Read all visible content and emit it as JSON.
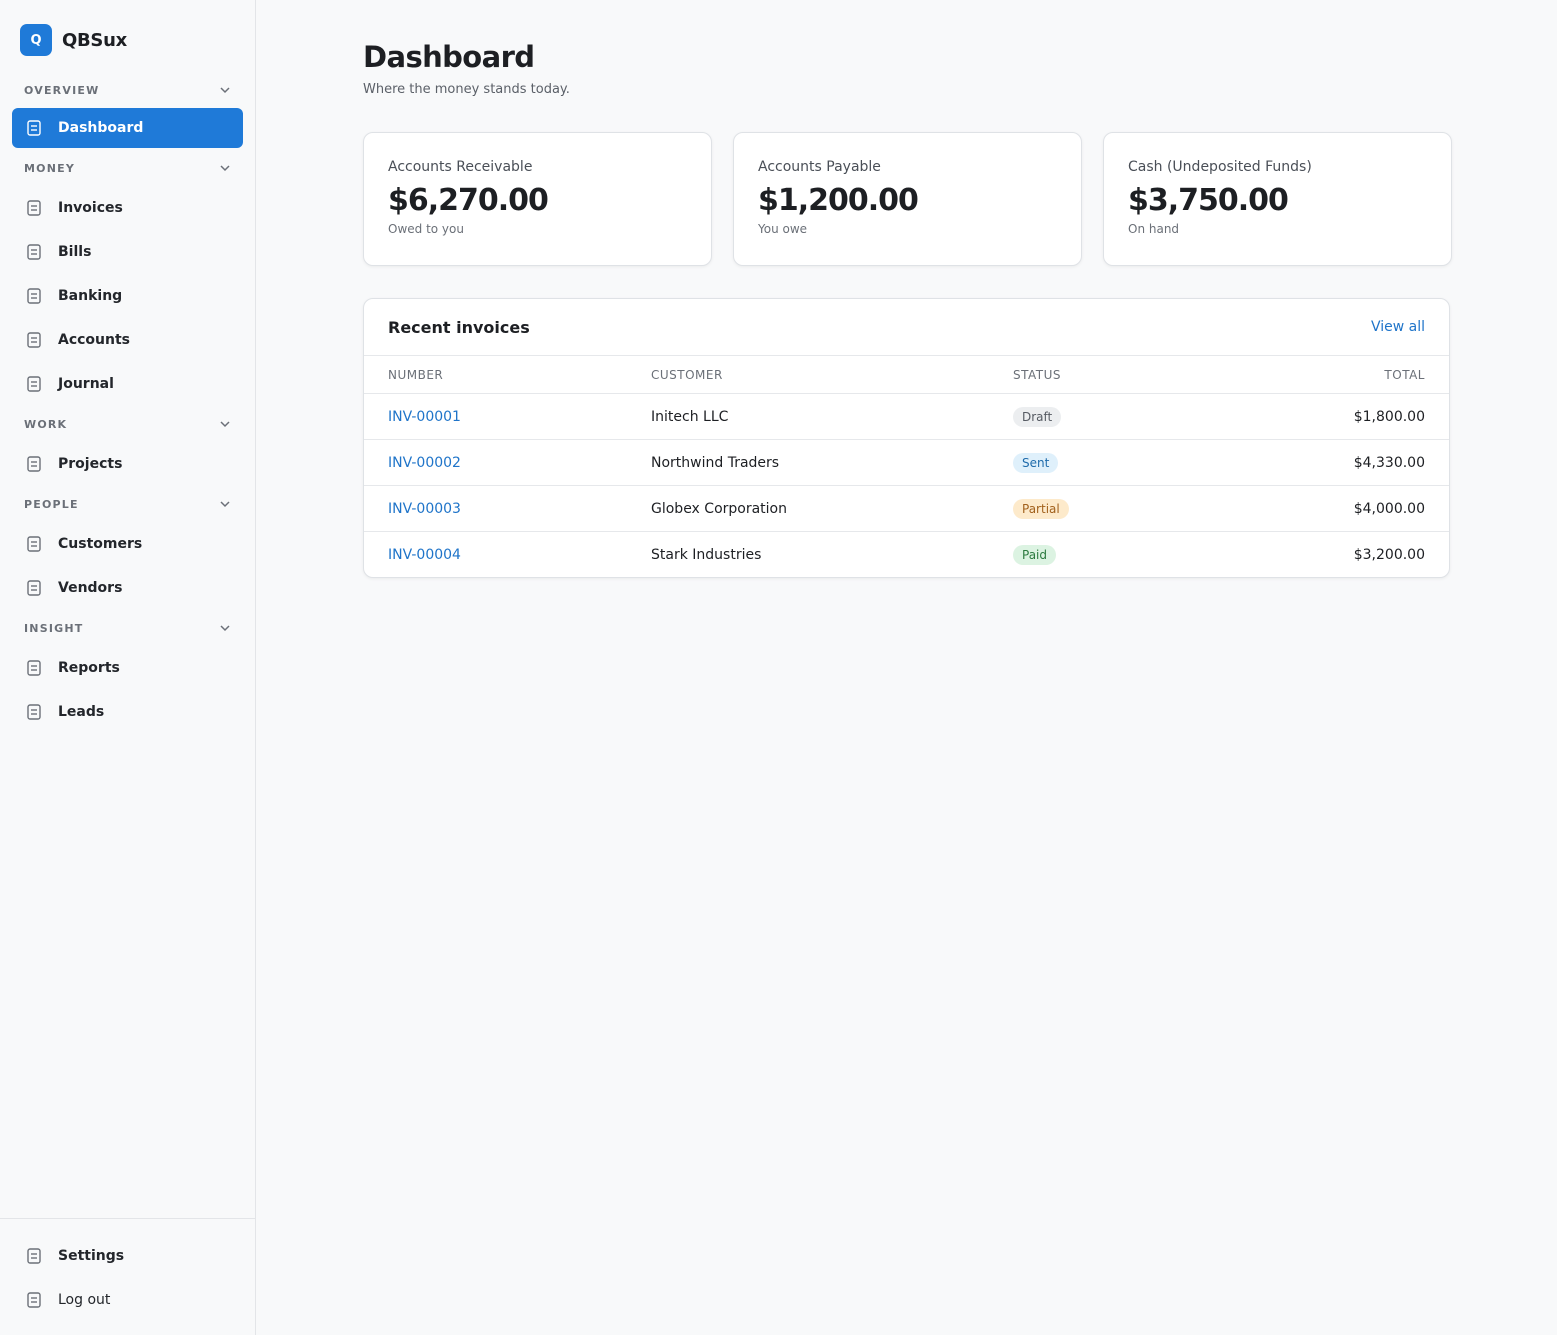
{
  "sidebar": {
    "logo": "Q",
    "brand": "QBSux",
    "sections": [
      {
        "title": "OVERVIEW",
        "items": [
          "Dashboard"
        ]
      },
      {
        "title": "MONEY",
        "items": [
          "Invoices",
          "Bills",
          "Banking",
          "Accounts",
          "Journal"
        ]
      },
      {
        "title": "WORK",
        "items": [
          "Projects"
        ]
      },
      {
        "title": "PEOPLE",
        "items": [
          "Customers",
          "Vendors"
        ]
      },
      {
        "title": "INSIGHT",
        "items": [
          "Reports",
          "Leads"
        ]
      }
    ],
    "footer": [
      "Settings",
      "Log out"
    ]
  },
  "header": {
    "title": "Dashboard",
    "subtitle": "Where the money stands today."
  },
  "cards": [
    {
      "label": "Accounts Receivable",
      "amount": "$6,270.00",
      "note": "Owed to you"
    },
    {
      "label": "Accounts Payable",
      "amount": "$1,200.00",
      "note": "You owe"
    },
    {
      "label": "Cash (Undeposited Funds)",
      "amount": "$3,750.00",
      "note": "On hand"
    }
  ],
  "table": {
    "title": "Recent invoices",
    "link": "View all",
    "columns": [
      "NUMBER",
      "CUSTOMER",
      "STATUS",
      "TOTAL"
    ],
    "rows": [
      [
        "INV-00001",
        "Initech LLC",
        "Draft",
        "$1,800.00"
      ],
      [
        "INV-00002",
        "Northwind Traders",
        "Sent",
        "$4,330.00"
      ],
      [
        "INV-00003",
        "Globex Corporation",
        "Partial",
        "$4,000.00"
      ],
      [
        "INV-00004",
        "Stark Industries",
        "Paid",
        "$3,200.00"
      ]
    ]
  }
}
